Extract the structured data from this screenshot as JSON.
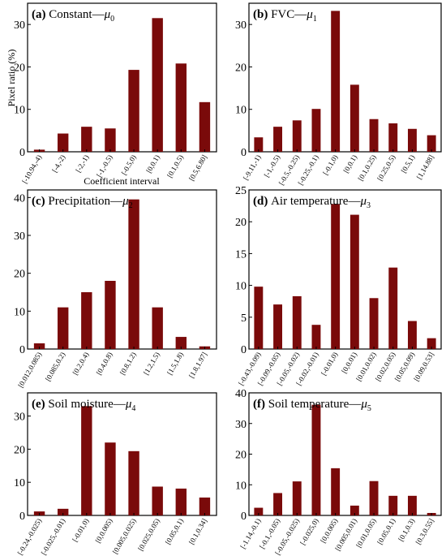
{
  "figure": {
    "ylabel": "Pixel ratio (%)",
    "xlabel": "Coefficient interval"
  },
  "colors": {
    "bar": "#7a0a0a"
  },
  "chart_data": [
    {
      "type": "bar",
      "panel": "(a)",
      "title": "Constant",
      "symbol": "μ",
      "sub": "0",
      "categories": [
        "[-10.94,-4)",
        "[-4,-2)",
        "[-2,-1)",
        "[-1,-0.5)",
        "[-0.5,0)",
        "[0,0.1)",
        "[0.1,0.5)",
        "[0.5,6.80]"
      ],
      "values": [
        0.5,
        4.3,
        5.9,
        5.5,
        19.3,
        31.5,
        20.8,
        11.7
      ],
      "ylim": [
        0,
        35
      ],
      "yticks": [
        0,
        10,
        20,
        30
      ]
    },
    {
      "type": "bar",
      "panel": "(b)",
      "title": "FVC",
      "symbol": "μ",
      "sub": "1",
      "categories": [
        "[-9.11,-1)",
        "[-1,-0.5)",
        "[-0.5,-0.25)",
        "[-0.25,-0.1)",
        "[-0.1,0)",
        "[0,0.1)",
        "[0.1,0.25)",
        "[0.25,0.5)",
        "[0.5,1)",
        "[1,14.88]"
      ],
      "values": [
        3.4,
        5.9,
        7.4,
        10.1,
        33.2,
        15.8,
        7.7,
        6.7,
        5.4,
        3.9
      ],
      "ylim": [
        0,
        35
      ],
      "yticks": [
        0,
        10,
        20,
        30
      ]
    },
    {
      "type": "bar",
      "panel": "(c)",
      "title": "Precipitation",
      "symbol": "μ",
      "sub": "2",
      "categories": [
        "[0.012,0.085)",
        "[0.085,0.2)",
        "[0.2,0.4)",
        "[0.4,0.8)",
        "[0.8,1.2)",
        "[1.2,1.5)",
        "[1.5,1.8)",
        "[1.8,1.97]"
      ],
      "values": [
        1.5,
        11.0,
        15.0,
        18.0,
        39.5,
        11.0,
        3.2,
        0.7
      ],
      "ylim": [
        0,
        42
      ],
      "yticks": [
        0,
        10,
        20,
        30,
        40
      ]
    },
    {
      "type": "bar",
      "panel": "(d)",
      "title": "Air temperature",
      "symbol": "μ",
      "sub": "3",
      "categories": [
        "[-0.43,-0.09)",
        "[-0.09,-0.05)",
        "[-0.05,-0.02)",
        "[-0.02,-0.01)",
        "[-0.01,0)",
        "[0,0.01)",
        "[0.01,0.02)",
        "[0.02,0.05)",
        "[0.05,0.09)",
        "[0.09,0.53]"
      ],
      "values": [
        9.8,
        7.0,
        8.3,
        3.8,
        22.8,
        21.1,
        8.0,
        12.8,
        4.4,
        1.7
      ],
      "ylim": [
        0,
        25
      ],
      "yticks": [
        0,
        5,
        10,
        15,
        20,
        25
      ]
    },
    {
      "type": "bar",
      "panel": "(e)",
      "title": "Soil moisture",
      "symbol": "μ",
      "sub": "4",
      "categories": [
        "[-0.24,-0.025)",
        "[-0.025,-0.01)",
        "[-0.01,0)",
        "[0,0.005)",
        "[0.005,0.025)",
        "[0.025,0.05)",
        "[0.05,0.1)",
        "[0.1,0.34]"
      ],
      "values": [
        1.2,
        2.0,
        33.0,
        22.0,
        19.4,
        8.7,
        8.1,
        5.4
      ],
      "ylim": [
        0,
        37
      ],
      "yticks": [
        0,
        10,
        20,
        30
      ]
    },
    {
      "type": "bar",
      "panel": "(f)",
      "title": "Soil temperature",
      "symbol": "μ",
      "sub": "5",
      "categories": [
        "[-1.14,-0.1)",
        "[-0.1,-0.05)",
        "[-0.05,-0.025)",
        "[-0.025,0)",
        "[0,0.005)",
        "[0.005,0.01)",
        "[0.01,0.05)",
        "[0.05,0.1)",
        "[0.1,0.3)",
        "[0.3,0.55]"
      ],
      "values": [
        2.5,
        7.3,
        11.1,
        36.1,
        15.4,
        3.2,
        11.2,
        6.4,
        6.4,
        0.8
      ],
      "ylim": [
        0,
        40
      ],
      "yticks": [
        0,
        10,
        20,
        30,
        40
      ]
    }
  ]
}
